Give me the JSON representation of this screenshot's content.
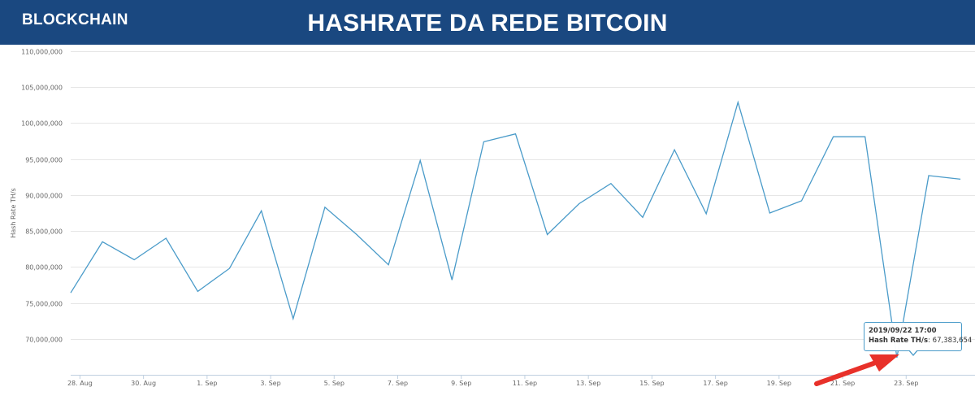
{
  "header": {
    "brand": "BLOCKCHAIN",
    "title": "HASHRATE DA REDE BITCOIN"
  },
  "colors": {
    "header_bg": "#1a4880",
    "line": "#4a9bc9",
    "arrow": "#e8312a"
  },
  "tooltip": {
    "date": "2019/09/22 17:00",
    "series_name": "Hash Rate TH/s",
    "value_text": "67,383,654"
  },
  "chart_data": {
    "type": "line",
    "title": "",
    "xlabel": "",
    "ylabel": "Hash Rate TH/s",
    "ylim": [
      65000000,
      110000000
    ],
    "grid": true,
    "y_ticks": [
      70000000,
      75000000,
      80000000,
      85000000,
      90000000,
      95000000,
      100000000,
      105000000,
      110000000
    ],
    "y_tick_labels": [
      "70,000,000",
      "75,000,000",
      "80,000,000",
      "85,000,000",
      "90,000,000",
      "95,000,000",
      "100,000,000",
      "105,000,000",
      "110,000,000"
    ],
    "x_ticks": [
      "2019-08-28",
      "2019-08-30",
      "2019-09-01",
      "2019-09-03",
      "2019-09-05",
      "2019-09-07",
      "2019-09-09",
      "2019-09-11",
      "2019-09-13",
      "2019-09-15",
      "2019-09-17",
      "2019-09-19",
      "2019-09-21",
      "2019-09-23"
    ],
    "x_tick_labels": [
      "28. Aug",
      "30. Aug",
      "1. Sep",
      "3. Sep",
      "5. Sep",
      "7. Sep",
      "9. Sep",
      "11. Sep",
      "13. Sep",
      "15. Sep",
      "17. Sep",
      "19. Sep",
      "21. Sep",
      "23. Sep"
    ],
    "xlim": [
      "2019-08-27 17:00",
      "2019-09-25 04:00"
    ],
    "series": [
      {
        "name": "Hash Rate TH/s",
        "x": [
          "2019-08-27 17:00",
          "2019-08-28 17:00",
          "2019-08-29 17:00",
          "2019-08-30 17:00",
          "2019-08-31 17:00",
          "2019-09-01 17:00",
          "2019-09-02 17:00",
          "2019-09-03 17:00",
          "2019-09-04 17:00",
          "2019-09-05 17:00",
          "2019-09-06 17:00",
          "2019-09-07 17:00",
          "2019-09-08 17:00",
          "2019-09-09 17:00",
          "2019-09-10 17:00",
          "2019-09-11 17:00",
          "2019-09-12 17:00",
          "2019-09-13 17:00",
          "2019-09-14 17:00",
          "2019-09-15 17:00",
          "2019-09-16 17:00",
          "2019-09-17 17:00",
          "2019-09-18 17:00",
          "2019-09-19 17:00",
          "2019-09-20 17:00",
          "2019-09-21 17:00",
          "2019-09-22 17:00",
          "2019-09-23 17:00",
          "2019-09-24 17:00"
        ],
        "values": [
          76400000,
          83500000,
          81000000,
          84000000,
          76600000,
          79800000,
          87800000,
          72800000,
          88300000,
          84500000,
          80300000,
          94800000,
          78200000,
          97400000,
          98500000,
          84500000,
          88800000,
          91600000,
          86900000,
          96300000,
          87400000,
          102900000,
          87500000,
          89200000,
          98100000,
          98100000,
          67383654,
          92700000,
          92200000
        ]
      }
    ]
  }
}
